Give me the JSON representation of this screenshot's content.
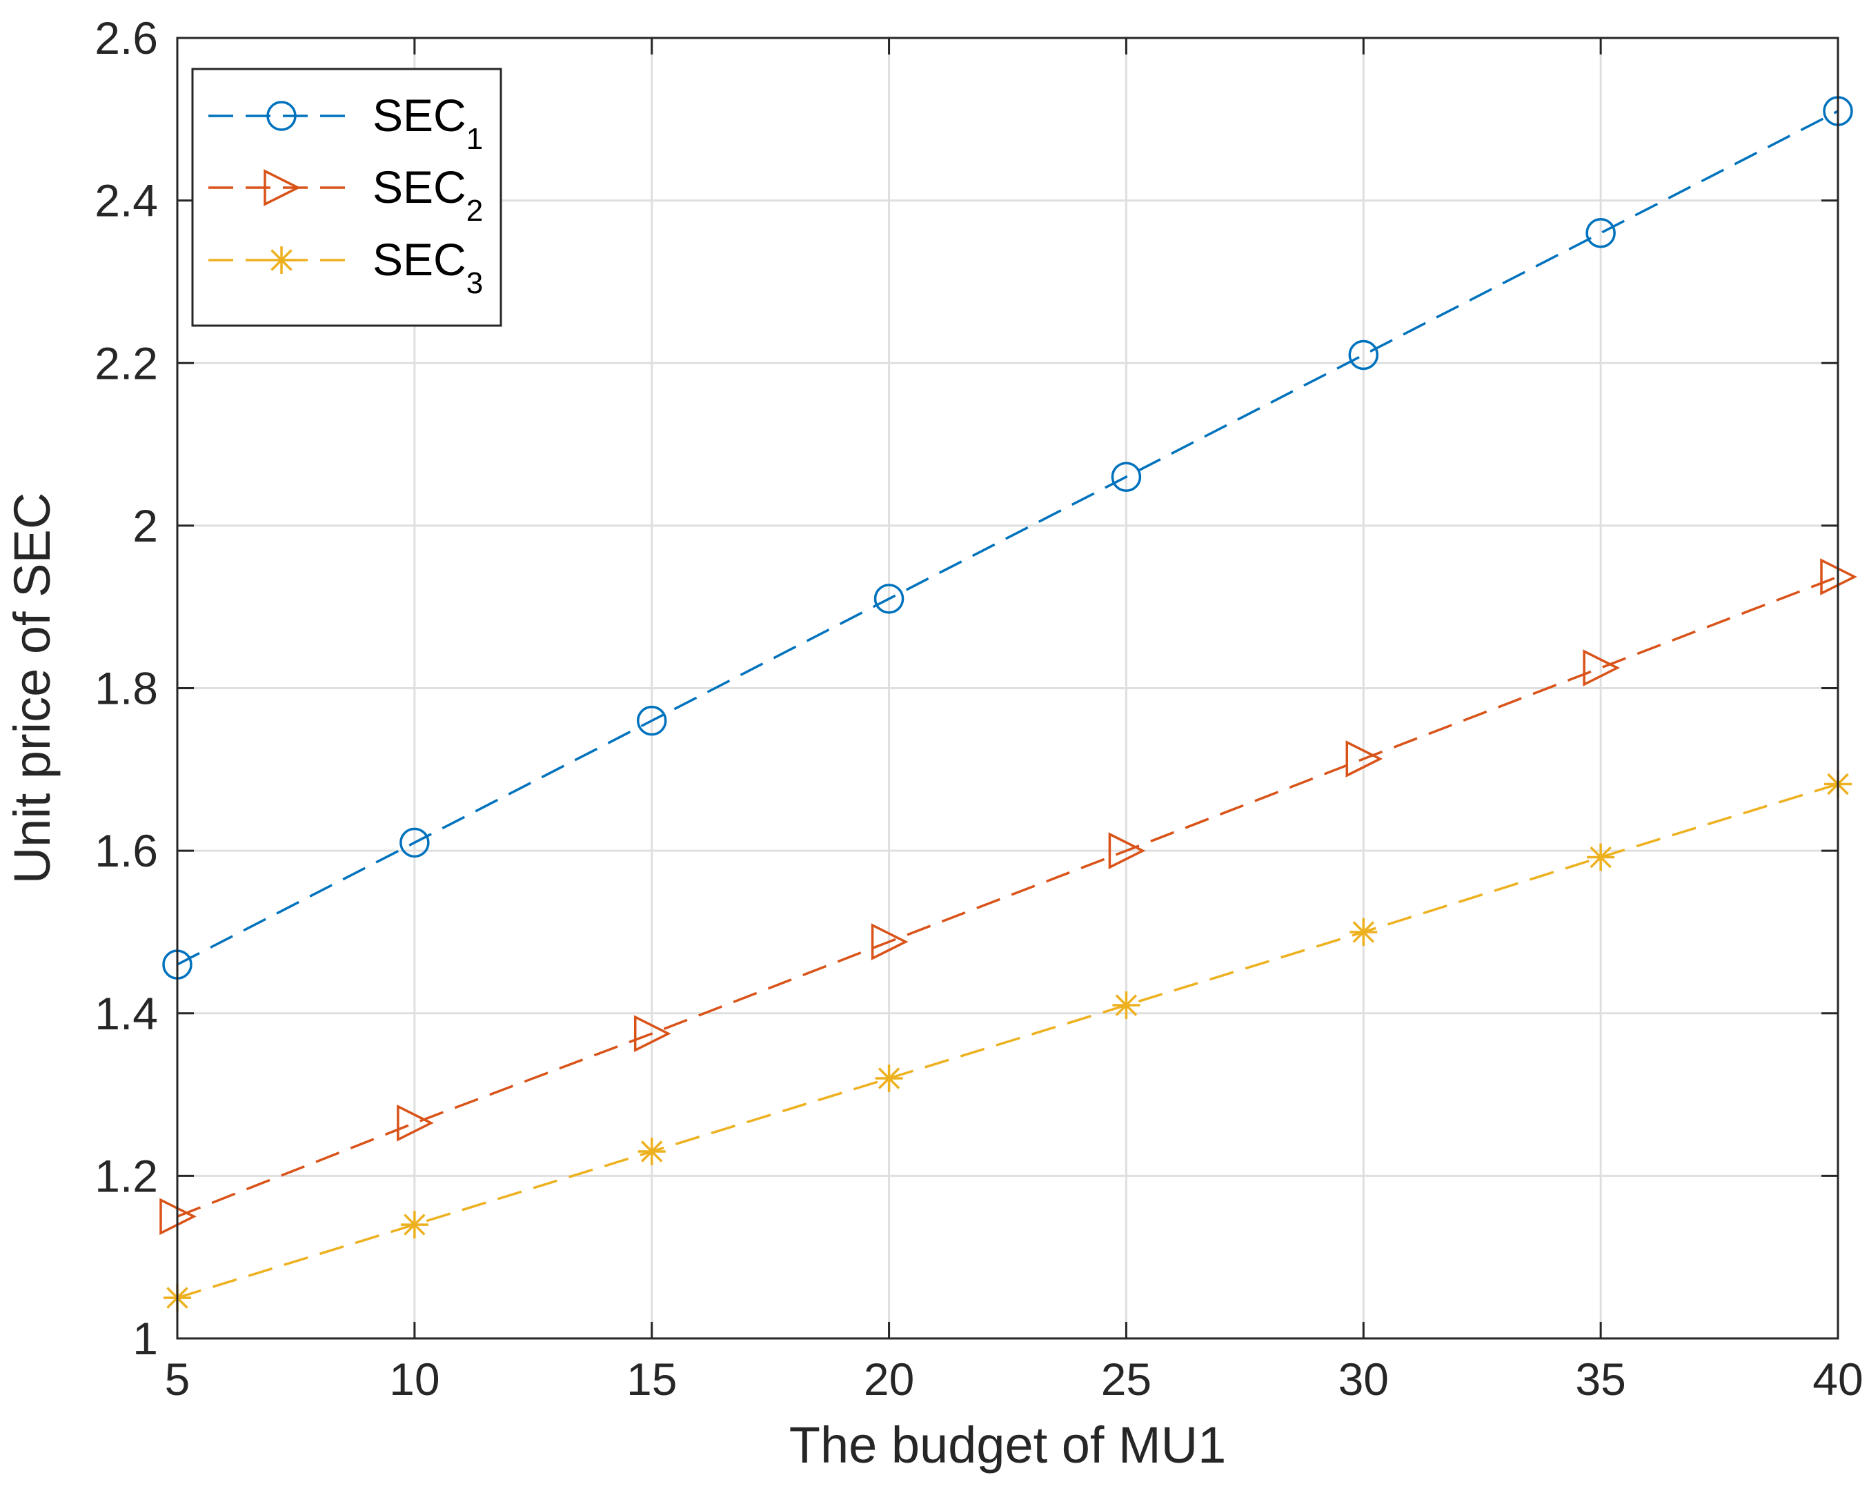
{
  "chart_data": {
    "type": "line",
    "title": "",
    "xlabel": "The budget of MU1",
    "ylabel": "Unit price of SEC",
    "x": [
      5,
      10,
      15,
      20,
      25,
      30,
      35,
      40
    ],
    "xlim": [
      5,
      40
    ],
    "ylim": [
      1,
      2.6
    ],
    "xticks": [
      5,
      10,
      15,
      20,
      25,
      30,
      35,
      40
    ],
    "xtick_labels": [
      "5",
      "10",
      "15",
      "20",
      "25",
      "30",
      "35",
      "40"
    ],
    "yticks": [
      1,
      1.2,
      1.4,
      1.6,
      1.8,
      2,
      2.2,
      2.4,
      2.6
    ],
    "ytick_labels": [
      "1",
      "1.2",
      "1.4",
      "1.6",
      "1.8",
      "2",
      "2.2",
      "2.4",
      "2.6"
    ],
    "grid": true,
    "legend_position": "top-left",
    "series": [
      {
        "name": "SEC",
        "subscript": "1",
        "marker": "circle",
        "line_style": "dashed",
        "color": "#0072BD",
        "values": [
          1.46,
          1.61,
          1.76,
          1.91,
          2.06,
          2.21,
          2.36,
          2.51
        ]
      },
      {
        "name": "SEC",
        "subscript": "2",
        "marker": "triangle-right",
        "line_style": "dashed",
        "color": "#D95319",
        "values": [
          1.15,
          1.265,
          1.375,
          1.488,
          1.6,
          1.713,
          1.825,
          1.937
        ]
      },
      {
        "name": "SEC",
        "subscript": "3",
        "marker": "asterisk",
        "line_style": "dashed",
        "color": "#EDB120",
        "values": [
          1.05,
          1.14,
          1.23,
          1.32,
          1.41,
          1.5,
          1.592,
          1.682
        ]
      }
    ]
  }
}
